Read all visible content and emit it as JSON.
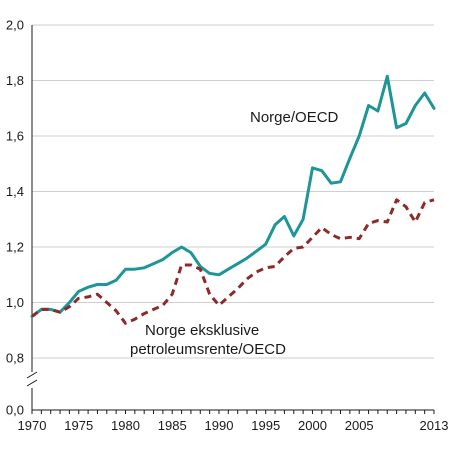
{
  "chart_data": {
    "type": "line",
    "title": "",
    "xlabel": "",
    "ylabel": "",
    "xlim": [
      1970,
      2013
    ],
    "ylim": [
      0,
      2.0
    ],
    "grid": true,
    "axis_break": true,
    "y_ticks": [
      {
        "value": 0.0,
        "label": "0,0"
      },
      {
        "value": 0.8,
        "label": "0,8"
      },
      {
        "value": 1.0,
        "label": "1,0"
      },
      {
        "value": 1.2,
        "label": "1,2"
      },
      {
        "value": 1.4,
        "label": "1,4"
      },
      {
        "value": 1.6,
        "label": "1,6"
      },
      {
        "value": 1.8,
        "label": "1,8"
      },
      {
        "value": 2.0,
        "label": "2,0"
      }
    ],
    "x_ticks": [
      {
        "value": 1970,
        "label": "1970"
      },
      {
        "value": 1975,
        "label": "1975"
      },
      {
        "value": 1980,
        "label": "1980"
      },
      {
        "value": 1985,
        "label": "1985"
      },
      {
        "value": 1990,
        "label": "1990"
      },
      {
        "value": 1995,
        "label": "1995"
      },
      {
        "value": 2000,
        "label": "2000"
      },
      {
        "value": 2005,
        "label": "2005"
      },
      {
        "value": 2013,
        "label": "2013"
      }
    ],
    "x": [
      1970,
      1971,
      1972,
      1973,
      1974,
      1975,
      1976,
      1977,
      1978,
      1979,
      1980,
      1981,
      1982,
      1983,
      1984,
      1985,
      1986,
      1987,
      1988,
      1989,
      1990,
      1991,
      1992,
      1993,
      1994,
      1995,
      1996,
      1997,
      1998,
      1999,
      2000,
      2001,
      2002,
      2003,
      2004,
      2005,
      2006,
      2007,
      2008,
      2009,
      2010,
      2011,
      2012,
      2013
    ],
    "series": [
      {
        "name": "Norge/OECD",
        "color": "#1e9598",
        "style": "solid",
        "values": [
          0.95,
          0.975,
          0.975,
          0.965,
          1.0,
          1.04,
          1.055,
          1.065,
          1.065,
          1.08,
          1.12,
          1.12,
          1.125,
          1.14,
          1.155,
          1.18,
          1.2,
          1.18,
          1.13,
          1.105,
          1.1,
          1.12,
          1.14,
          1.16,
          1.185,
          1.21,
          1.28,
          1.31,
          1.24,
          1.3,
          1.485,
          1.475,
          1.43,
          1.435,
          1.52,
          1.6,
          1.71,
          1.69,
          1.815,
          1.63,
          1.645,
          1.71,
          1.755,
          1.7
        ]
      },
      {
        "name": "Norge eksklusive petroleumsrente/OECD",
        "color": "#8c2b2a",
        "style": "dashed",
        "values": [
          0.95,
          0.975,
          0.975,
          0.965,
          0.985,
          1.015,
          1.02,
          1.03,
          1.0,
          0.97,
          0.925,
          0.94,
          0.96,
          0.975,
          0.99,
          1.03,
          1.135,
          1.135,
          1.12,
          1.03,
          0.99,
          1.02,
          1.05,
          1.085,
          1.11,
          1.125,
          1.13,
          1.165,
          1.195,
          1.2,
          1.235,
          1.27,
          1.245,
          1.23,
          1.235,
          1.23,
          1.285,
          1.295,
          1.29,
          1.37,
          1.345,
          1.29,
          1.36,
          1.37
        ]
      }
    ],
    "annotations": [
      {
        "text": "Norge/OECD",
        "series": 0
      },
      {
        "text": "Norge eksklusive",
        "series": 1
      },
      {
        "text": "petroleumsrente/OECD",
        "series": 1
      }
    ]
  }
}
